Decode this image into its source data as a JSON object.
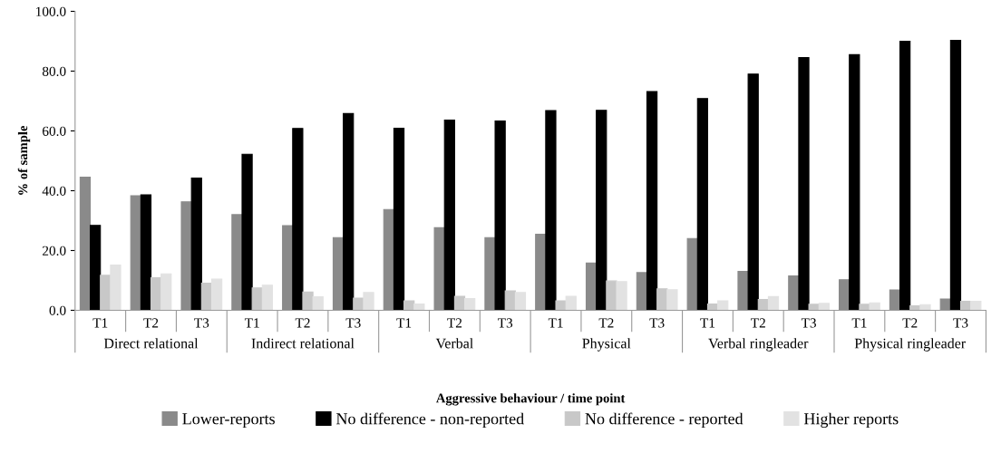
{
  "chart_data": {
    "type": "bar",
    "xlabel": "Aggressive behaviour / time point",
    "ylabel": "% of sample",
    "categories": [
      "T1",
      "T2",
      "T3",
      "T1",
      "T2",
      "T3",
      "T1",
      "T2",
      "T3",
      "T1",
      "T2",
      "T3",
      "T1",
      "T2",
      "T3",
      "T1",
      "T2",
      "T3"
    ],
    "annotations": [
      "Direct relational",
      "Indirect relational",
      "Verbal",
      "Physical",
      "Verbal ringleader",
      "Physical ringleader"
    ],
    "series": [
      {
        "name": "Lower-reports",
        "color": "#8a8a8a",
        "values": [
          44.5,
          38.3,
          36.3,
          32.0,
          28.3,
          24.3,
          33.7,
          27.6,
          24.3,
          25.4,
          15.8,
          12.6,
          24.0,
          13.0,
          11.5,
          10.2,
          6.8,
          3.8
        ]
      },
      {
        "name": "No difference - non-reported",
        "color": "#000000",
        "values": [
          28.4,
          38.6,
          44.2,
          52.2,
          60.8,
          65.8,
          60.9,
          63.6,
          63.3,
          66.8,
          66.9,
          73.2,
          70.8,
          79.0,
          84.5,
          85.5,
          90.0,
          90.3
        ]
      },
      {
        "name": "No difference - reported",
        "color": "#c8c8c8",
        "values": [
          11.7,
          10.9,
          9.1,
          7.5,
          6.1,
          4.1,
          3.2,
          4.7,
          6.5,
          3.2,
          9.8,
          7.2,
          2.1,
          3.6,
          2.0,
          2.0,
          1.5,
          3.0
        ]
      },
      {
        "name": "Higher reports",
        "color": "#e2e2e2",
        "values": [
          15.1,
          12.2,
          10.4,
          8.4,
          4.5,
          6.0,
          2.1,
          3.9,
          6.0,
          4.7,
          9.6,
          6.9,
          3.2,
          4.6,
          2.3,
          2.5,
          1.9,
          3.0
        ]
      }
    ],
    "ylim": [
      0,
      100
    ],
    "yticks": [
      {
        "value": 0,
        "label": "0.0"
      },
      {
        "value": 20,
        "label": "20.0"
      },
      {
        "value": 40,
        "label": "40.0"
      },
      {
        "value": 60,
        "label": "60.0"
      },
      {
        "value": 80,
        "label": "80.0"
      },
      {
        "value": 100,
        "label": "100.0"
      }
    ],
    "grid": false,
    "legend": "bottom"
  }
}
